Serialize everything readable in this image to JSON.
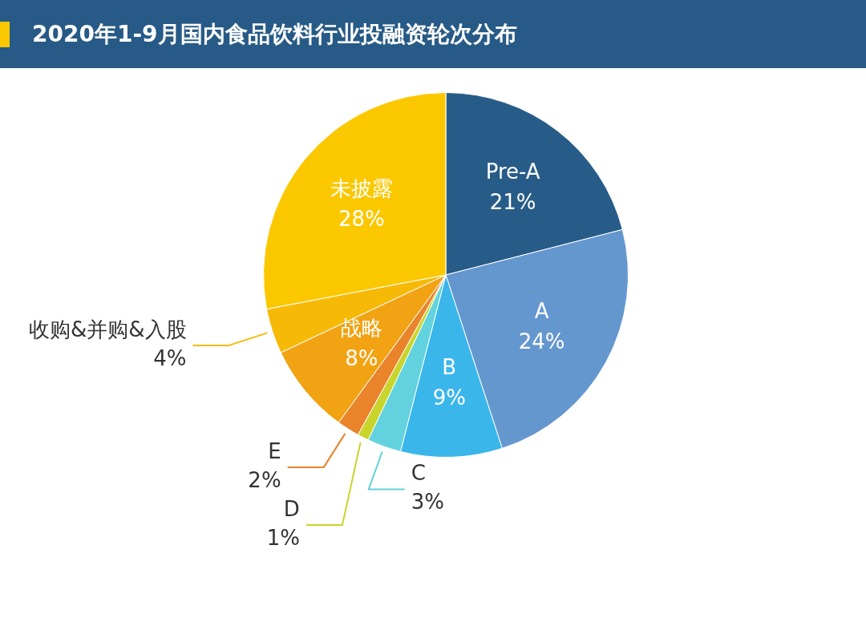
{
  "chart_data": {
    "type": "pie",
    "title": "2020年1-9月国内食品饮料行业投融资轮次分布",
    "categories": [
      "Pre-A",
      "A",
      "B",
      "C",
      "D",
      "E",
      "战略",
      "收购&并购&入股",
      "未披露"
    ],
    "values": [
      21,
      24,
      9,
      3,
      1,
      2,
      8,
      4,
      28
    ],
    "colors": [
      "#285c88",
      "#6597cf",
      "#3ab6ea",
      "#62d2de",
      "#c9d52c",
      "#e9842b",
      "#f2a313",
      "#f6b906",
      "#fbc800"
    ],
    "value_labels": [
      "21%",
      "24%",
      "9%",
      "3%",
      "1%",
      "2%",
      "8%",
      "4%",
      "28%"
    ]
  }
}
